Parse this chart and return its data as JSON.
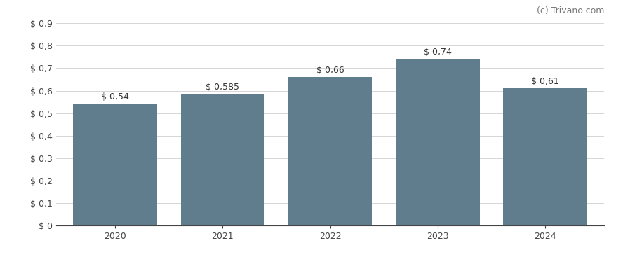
{
  "categories": [
    "2020",
    "2021",
    "2022",
    "2023",
    "2024"
  ],
  "values": [
    0.54,
    0.585,
    0.66,
    0.74,
    0.61
  ],
  "bar_labels": [
    "$ 0,54",
    "$ 0,585",
    "$ 0,66",
    "$ 0,74",
    "$ 0,61"
  ],
  "bar_color": "#5f7d8c",
  "background_color": "#ffffff",
  "ytick_labels": [
    "$ 0",
    "$ 0,1",
    "$ 0,2",
    "$ 0,3",
    "$ 0,4",
    "$ 0,5",
    "$ 0,6",
    "$ 0,7",
    "$ 0,8",
    "$ 0,9"
  ],
  "ytick_values": [
    0.0,
    0.1,
    0.2,
    0.3,
    0.4,
    0.5,
    0.6,
    0.7,
    0.8,
    0.9
  ],
  "ylim": [
    0,
    0.9
  ],
  "watermark": "(c) Trivano.com",
  "watermark_color": "#777777",
  "grid_color": "#d5d5d5",
  "label_fontsize": 9,
  "tick_fontsize": 9,
  "watermark_fontsize": 9,
  "bar_width": 0.78
}
